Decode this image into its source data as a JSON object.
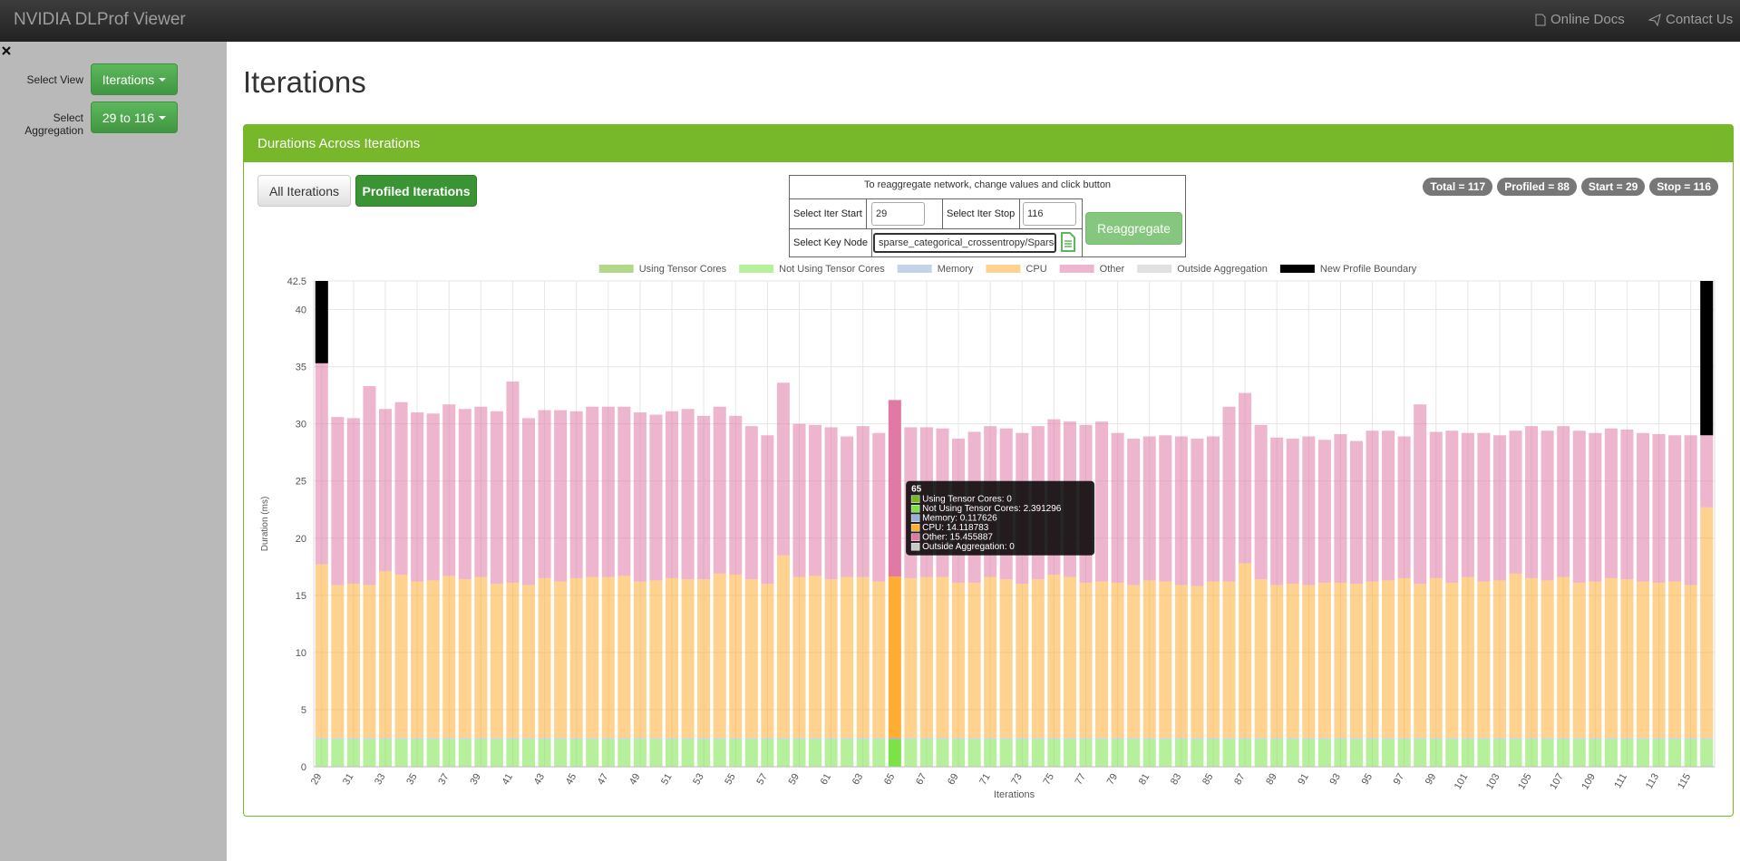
{
  "header": {
    "title": "NVIDIA DLProf Viewer",
    "links": [
      "Online Docs",
      "Contact Us"
    ]
  },
  "sidebar": {
    "controls": [
      {
        "label": "Select View",
        "value": "Iterations"
      },
      {
        "label": "Select Aggregation",
        "value": "29 to 116"
      }
    ]
  },
  "page_title": "Iterations",
  "panel": {
    "title": "Durations Across Iterations",
    "buttons": [
      "All Iterations",
      "Profiled Iterations"
    ],
    "reaggregate": {
      "caption": "To reaggregate network, change values and click button",
      "iter_start_label": "Select Iter Start",
      "iter_start": "29",
      "iter_stop_label": "Select Iter Stop",
      "iter_stop": "116",
      "key_node_label": "Select Key Node",
      "key_node": "sparse_categorical_crossentropy/SparseSoftmaxCrossEntropyWithLogits",
      "button": "Reaggregate"
    },
    "badges": [
      "Total = 117",
      "Profiled = 88",
      "Start = 29",
      "Stop = 116"
    ]
  },
  "chart_data": {
    "type": "stacked_bar",
    "x_label": "Iterations",
    "y_label": "Duration (ms)",
    "x": [
      29,
      30,
      31,
      32,
      33,
      34,
      35,
      36,
      37,
      38,
      39,
      40,
      41,
      42,
      43,
      44,
      45,
      46,
      47,
      48,
      49,
      50,
      51,
      52,
      53,
      54,
      55,
      56,
      57,
      58,
      59,
      60,
      61,
      62,
      63,
      64,
      65,
      66,
      67,
      68,
      69,
      70,
      71,
      72,
      73,
      74,
      75,
      76,
      77,
      78,
      79,
      80,
      81,
      82,
      83,
      84,
      85,
      86,
      87,
      88,
      89,
      90,
      91,
      92,
      93,
      94,
      95,
      96,
      97,
      98,
      99,
      100,
      101,
      102,
      103,
      104,
      105,
      106,
      107,
      108,
      109,
      110,
      111,
      112,
      113,
      114,
      115,
      116
    ],
    "xlim": [
      28.5,
      116.5
    ],
    "xticks": [
      29,
      31,
      33,
      35,
      37,
      39,
      41,
      43,
      45,
      47,
      49,
      51,
      53,
      55,
      57,
      59,
      61,
      63,
      65,
      67,
      69,
      71,
      73,
      75,
      77,
      79,
      81,
      83,
      85,
      87,
      89,
      91,
      93,
      95,
      97,
      99,
      101,
      103,
      105,
      107,
      109,
      111,
      113,
      115
    ],
    "ylim": [
      0,
      42.5
    ],
    "yticks": [
      0,
      5,
      10,
      15,
      20,
      25,
      30,
      35,
      40,
      42.5
    ],
    "grid": true,
    "legend": "top",
    "series": [
      {
        "name": "Using Tensor Cores",
        "color": "#76b82a",
        "values": [
          0,
          0,
          0,
          0,
          0,
          0,
          0,
          0,
          0,
          0,
          0,
          0,
          0,
          0,
          0,
          0,
          0,
          0,
          0,
          0,
          0,
          0,
          0,
          0,
          0,
          0,
          0,
          0,
          0,
          0,
          0,
          0,
          0,
          0,
          0,
          0,
          0,
          0,
          0,
          0,
          0,
          0,
          0,
          0,
          0,
          0,
          0,
          0,
          0,
          0,
          0,
          0,
          0,
          0,
          0,
          0,
          0,
          0,
          0,
          0,
          0,
          0,
          0,
          0,
          0,
          0,
          0,
          0,
          0,
          0,
          0,
          0,
          0,
          0,
          0,
          0,
          0,
          0,
          0,
          0,
          0,
          0,
          0,
          0,
          0,
          0,
          0,
          0
        ]
      },
      {
        "name": "Not Using Tensor Cores",
        "color": "#7be348",
        "values": [
          2.4,
          2.4,
          2.4,
          2.4,
          2.4,
          2.4,
          2.4,
          2.4,
          2.4,
          2.4,
          2.4,
          2.4,
          2.4,
          2.4,
          2.4,
          2.4,
          2.4,
          2.4,
          2.4,
          2.4,
          2.4,
          2.4,
          2.4,
          2.4,
          2.4,
          2.4,
          2.4,
          2.4,
          2.4,
          2.4,
          2.4,
          2.4,
          2.4,
          2.4,
          2.4,
          2.4,
          2.391296,
          2.4,
          2.4,
          2.4,
          2.4,
          2.4,
          2.4,
          2.4,
          2.4,
          2.4,
          2.4,
          2.4,
          2.4,
          2.4,
          2.4,
          2.4,
          2.4,
          2.4,
          2.4,
          2.4,
          2.4,
          2.4,
          2.4,
          2.4,
          2.4,
          2.4,
          2.4,
          2.4,
          2.4,
          2.4,
          2.4,
          2.4,
          2.4,
          2.4,
          2.4,
          2.4,
          2.4,
          2.4,
          2.4,
          2.4,
          2.4,
          2.4,
          2.4,
          2.4,
          2.4,
          2.4,
          2.4,
          2.4,
          2.4,
          2.4,
          2.4,
          2.4
        ]
      },
      {
        "name": "Memory",
        "color": "#94afd9",
        "values": [
          0.12,
          0.12,
          0.12,
          0.12,
          0.12,
          0.12,
          0.12,
          0.12,
          0.12,
          0.12,
          0.12,
          0.12,
          0.12,
          0.12,
          0.12,
          0.12,
          0.12,
          0.12,
          0.12,
          0.12,
          0.12,
          0.12,
          0.12,
          0.12,
          0.12,
          0.12,
          0.12,
          0.12,
          0.12,
          0.12,
          0.12,
          0.12,
          0.12,
          0.12,
          0.12,
          0.12,
          0.117626,
          0.12,
          0.12,
          0.12,
          0.12,
          0.12,
          0.12,
          0.12,
          0.12,
          0.12,
          0.12,
          0.12,
          0.12,
          0.12,
          0.12,
          0.12,
          0.12,
          0.12,
          0.12,
          0.12,
          0.12,
          0.12,
          0.12,
          0.12,
          0.12,
          0.12,
          0.12,
          0.12,
          0.12,
          0.12,
          0.12,
          0.12,
          0.12,
          0.12,
          0.12,
          0.12,
          0.12,
          0.12,
          0.12,
          0.12,
          0.12,
          0.12,
          0.12,
          0.12,
          0.12,
          0.12,
          0.12,
          0.12,
          0.12,
          0.12,
          0.12,
          0.12
        ]
      },
      {
        "name": "CPU",
        "color": "#ffad33",
        "values": [
          15.18,
          13.38,
          13.48,
          13.38,
          14.58,
          14.28,
          13.68,
          13.78,
          14.18,
          13.88,
          14.08,
          13.48,
          13.58,
          13.38,
          13.98,
          13.68,
          13.98,
          14.08,
          14.08,
          14.18,
          13.68,
          13.78,
          13.98,
          13.88,
          13.88,
          14.38,
          14.28,
          13.88,
          13.48,
          15.98,
          14.08,
          14.18,
          13.88,
          14.08,
          14.08,
          13.68,
          14.118783,
          13.98,
          14.08,
          14.08,
          13.58,
          13.58,
          14.08,
          13.88,
          13.48,
          13.88,
          14.28,
          14.08,
          13.58,
          13.68,
          13.58,
          13.38,
          13.78,
          13.68,
          13.38,
          13.28,
          13.68,
          13.68,
          15.28,
          13.88,
          13.38,
          13.48,
          13.38,
          13.58,
          13.58,
          13.48,
          13.68,
          13.78,
          13.98,
          13.48,
          13.98,
          13.58,
          14.08,
          13.68,
          13.78,
          14.38,
          13.98,
          13.78,
          14.08,
          13.58,
          13.68,
          13.98,
          13.88,
          13.68,
          13.58,
          13.68,
          13.38,
          20.18
        ]
      },
      {
        "name": "Other",
        "color": "#e07aa5",
        "values": [
          17.6,
          14.7,
          14.5,
          17.4,
          14.2,
          15.1,
          14.8,
          14.6,
          15.0,
          14.9,
          14.9,
          15.1,
          17.6,
          14.6,
          14.7,
          15.0,
          14.6,
          14.9,
          14.9,
          14.8,
          14.8,
          14.5,
          14.6,
          14.9,
          14.3,
          14.6,
          13.9,
          13.4,
          13.0,
          15.1,
          13.4,
          13.2,
          13.3,
          12.3,
          13.2,
          13.0,
          15.455887,
          13.2,
          13.1,
          13.0,
          12.6,
          13.2,
          13.2,
          13.2,
          13.2,
          13.4,
          13.6,
          13.6,
          13.8,
          14.0,
          13.1,
          12.8,
          12.6,
          12.8,
          13.0,
          12.9,
          12.7,
          15.3,
          14.9,
          13.5,
          12.9,
          12.7,
          13.0,
          12.5,
          13.0,
          12.5,
          13.2,
          13.1,
          12.4,
          15.7,
          12.8,
          13.3,
          12.6,
          13.0,
          12.7,
          12.5,
          13.3,
          13.1,
          13.2,
          13.3,
          13.0,
          13.1,
          13.1,
          13.0,
          13.0,
          12.8,
          13.1,
          6.3
        ]
      },
      {
        "name": "Outside Aggregation",
        "color": "#c8c8c8",
        "values": [
          0,
          0,
          0,
          0,
          0,
          0,
          0,
          0,
          0,
          0,
          0,
          0,
          0,
          0,
          0,
          0,
          0,
          0,
          0,
          0,
          0,
          0,
          0,
          0,
          0,
          0,
          0,
          0,
          0,
          0,
          0,
          0,
          0,
          0,
          0,
          0,
          0,
          0,
          0,
          0,
          0,
          0,
          0,
          0,
          0,
          0,
          0,
          0,
          0,
          0,
          0,
          0,
          0,
          0,
          0,
          0,
          0,
          0,
          0,
          0,
          0,
          0,
          0,
          0,
          0,
          0,
          0,
          0,
          0,
          0,
          0,
          0,
          0,
          0,
          0,
          0,
          0,
          0,
          0,
          0,
          0,
          0,
          0,
          0,
          0,
          0,
          0,
          0
        ]
      },
      {
        "name": "New Profile Boundary",
        "color": "#000000",
        "values": [
          7.2,
          0,
          0,
          0,
          0,
          0,
          0,
          0,
          0,
          0,
          0,
          0,
          0,
          0,
          0,
          0,
          0,
          0,
          0,
          0,
          0,
          0,
          0,
          0,
          0,
          0,
          0,
          0,
          0,
          0,
          0,
          0,
          0,
          0,
          0,
          0,
          0,
          0,
          0,
          0,
          0,
          0,
          0,
          0,
          0,
          0,
          0,
          0,
          0,
          0,
          0,
          0,
          0,
          0,
          0,
          0,
          0,
          0,
          0,
          0,
          0,
          0,
          0,
          0,
          0,
          0,
          0,
          0,
          0,
          0,
          0,
          0,
          0,
          0,
          0,
          0,
          0,
          0,
          0,
          0,
          0,
          0,
          0,
          0,
          0,
          0,
          0,
          13.5
        ]
      }
    ]
  },
  "tooltip": {
    "title": 65,
    "lines": [
      "Using Tensor Cores: 0",
      "Not Using Tensor Cores: 2.391296",
      "Memory: 0.117626",
      "CPU: 14.118783",
      "Other: 15.455887",
      "Outside Aggregation: 0"
    ]
  }
}
